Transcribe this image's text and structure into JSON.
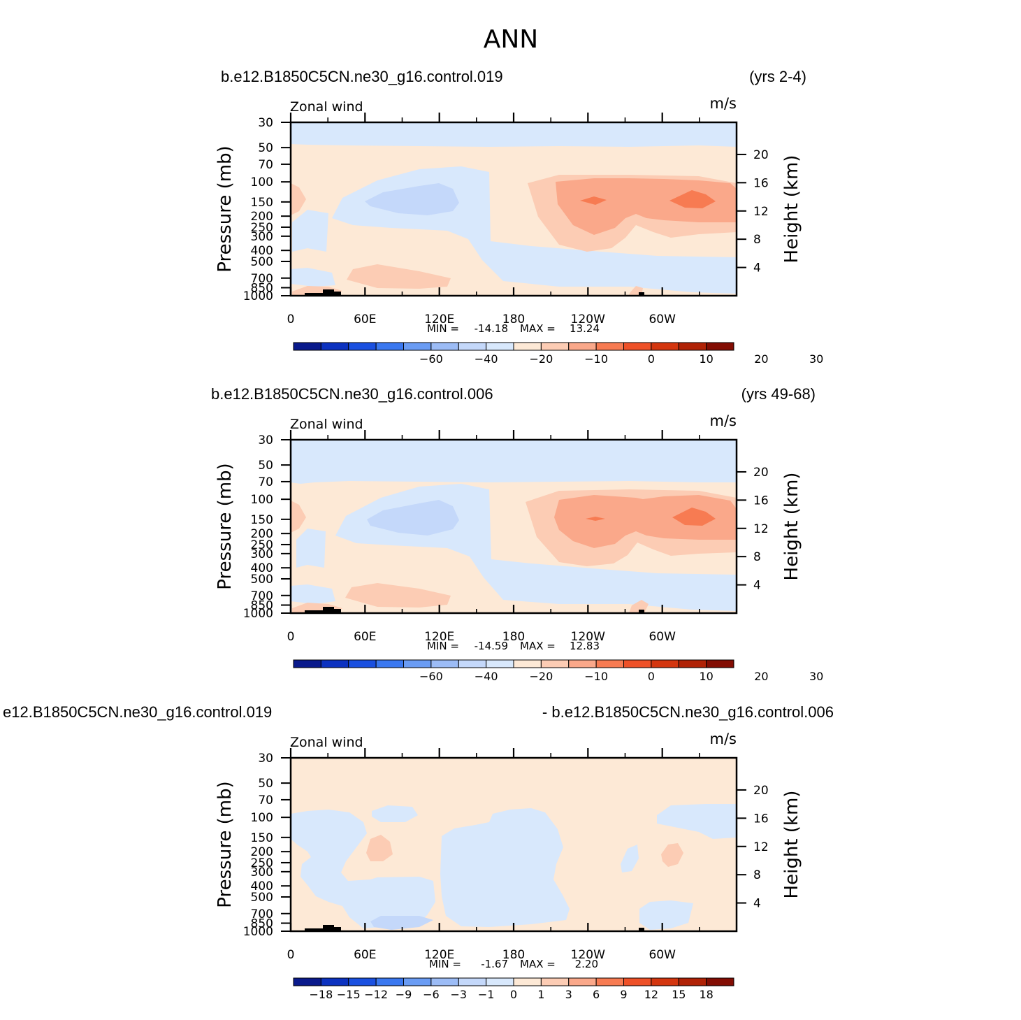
{
  "figure_title": "ANN",
  "chart_data": [
    {
      "type": "heatmap",
      "case": "b.e12.B1850C5CN.ne30_g16.control.019",
      "years": "(yrs 2-4)",
      "variable": "Zonal wind",
      "units": "m/s",
      "ylabel": "Pressure (mb)",
      "ylabel_right": "Height (km)",
      "x_ticks": [
        "0",
        "60E",
        "120E",
        "180",
        "120W",
        "60W"
      ],
      "y_ticks": [
        "30",
        "50",
        "70",
        "100",
        "150",
        "200",
        "250",
        "300",
        "400",
        "500",
        "700",
        "850",
        "1000"
      ],
      "height_ticks": [
        "20",
        "16",
        "12",
        "8",
        "4"
      ],
      "min_label": "MIN =",
      "min": "-14.18",
      "max_label": "MAX =",
      "max": "13.24",
      "colorbar_labels": [
        "-60",
        "-40",
        "-20",
        "-10",
        "0",
        "10",
        "20",
        "30"
      ],
      "colorbar_colors": [
        "#0a1a8c",
        "#0c32c0",
        "#1a50e0",
        "#3a78f0",
        "#6a9cf4",
        "#9cbcf6",
        "#c4d8fa",
        "#d8e8fc",
        "#fde9d6",
        "#fcccb4",
        "#faa88a",
        "#f77b52",
        "#ee5128",
        "#d4360f",
        "#b02206",
        "#830d03"
      ]
    },
    {
      "type": "heatmap",
      "case": "b.e12.B1850C5CN.ne30_g16.control.006",
      "years": "(yrs 49-68)",
      "variable": "Zonal wind",
      "units": "m/s",
      "ylabel": "Pressure (mb)",
      "ylabel_right": "Height (km)",
      "x_ticks": [
        "0",
        "60E",
        "120E",
        "180",
        "120W",
        "60W"
      ],
      "y_ticks": [
        "30",
        "50",
        "70",
        "100",
        "150",
        "200",
        "250",
        "300",
        "400",
        "500",
        "700",
        "850",
        "1000"
      ],
      "height_ticks": [
        "20",
        "16",
        "12",
        "8",
        "4"
      ],
      "min_label": "MIN =",
      "min": "-14.59",
      "max_label": "MAX =",
      "max": "12.83",
      "colorbar_labels": [
        "-60",
        "-40",
        "-20",
        "-10",
        "0",
        "10",
        "20",
        "30"
      ],
      "colorbar_colors": [
        "#0a1a8c",
        "#0c32c0",
        "#1a50e0",
        "#3a78f0",
        "#6a9cf4",
        "#9cbcf6",
        "#c4d8fa",
        "#d8e8fc",
        "#fde9d6",
        "#fcccb4",
        "#faa88a",
        "#f77b52",
        "#ee5128",
        "#d4360f",
        "#b02206",
        "#830d03"
      ]
    },
    {
      "type": "heatmap",
      "case": "e12.B1850C5CN.ne30_g16.control.019",
      "years": "- b.e12.B1850C5CN.ne30_g16.control.006",
      "variable": "Zonal wind",
      "units": "m/s",
      "ylabel": "Pressure (mb)",
      "ylabel_right": "Height (km)",
      "x_ticks": [
        "0",
        "60E",
        "120E",
        "180",
        "120W",
        "60W"
      ],
      "y_ticks": [
        "30",
        "50",
        "70",
        "100",
        "150",
        "200",
        "250",
        "300",
        "400",
        "500",
        "700",
        "850",
        "1000"
      ],
      "height_ticks": [
        "20",
        "16",
        "12",
        "8",
        "4"
      ],
      "min_label": "MIN =",
      "min": "-1.67",
      "max_label": "MAX =",
      "max": "2.20",
      "colorbar_labels": [
        "-18",
        "-15",
        "-12",
        "-9",
        "-6",
        "-3",
        "-1",
        "0",
        "1",
        "3",
        "6",
        "9",
        "12",
        "15",
        "18"
      ],
      "colorbar_colors": [
        "#0a1a8c",
        "#0c32c0",
        "#1a50e0",
        "#3a78f0",
        "#6a9cf4",
        "#9cbcf6",
        "#c4d8fa",
        "#d8e8fc",
        "#fde9d6",
        "#fcccb4",
        "#faa88a",
        "#f77b52",
        "#ee5128",
        "#d4360f",
        "#b02206",
        "#830d03"
      ]
    }
  ]
}
